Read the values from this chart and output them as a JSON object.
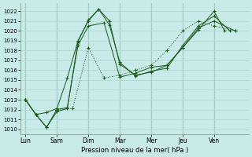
{
  "xlabel": "Pression niveau de la mer( hPa )",
  "ylim": [
    1009.5,
    1022.8
  ],
  "day_labels": [
    "Lun",
    "Sam",
    "Dim",
    "Mar",
    "Mer",
    "Jeu",
    "Ven"
  ],
  "background_color": "#c8eae8",
  "plot_bg_color": "#c8eae8",
  "grid_color": "#b0d4d0",
  "line_color": "#1a5c1a",
  "lines": [
    {
      "x": [
        0.0,
        0.33,
        0.67,
        1.0,
        1.33,
        1.67,
        2.0,
        2.33,
        2.67,
        3.0,
        3.5,
        4.0,
        4.5,
        5.0,
        5.5,
        6.0,
        6.33
      ],
      "y": [
        1013.0,
        1011.5,
        1011.7,
        1012.1,
        1015.2,
        1019.0,
        1021.0,
        1022.2,
        1021.0,
        1016.6,
        1015.5,
        1015.8,
        1016.5,
        1018.3,
        1020.1,
        1022.0,
        1020.0
      ],
      "style": "-"
    },
    {
      "x": [
        0.0,
        0.33,
        0.67,
        1.0,
        1.33,
        1.67,
        2.0,
        2.33,
        2.67,
        3.0,
        3.5,
        4.0,
        4.5,
        5.0,
        5.5,
        6.0,
        6.5
      ],
      "y": [
        1013.0,
        1011.5,
        1010.2,
        1011.8,
        1012.1,
        1018.9,
        1021.1,
        1022.2,
        1020.6,
        1016.8,
        1015.4,
        1015.9,
        1016.2,
        1018.5,
        1020.5,
        1021.5,
        1020.0
      ],
      "style": "-"
    },
    {
      "x": [
        0.0,
        0.33,
        0.67,
        1.0,
        1.33,
        1.67,
        2.0,
        2.5,
        3.0,
        3.5,
        4.0,
        4.5,
        5.0,
        5.5,
        6.0,
        6.67
      ],
      "y": [
        1013.0,
        1011.5,
        1010.2,
        1012.0,
        1012.2,
        1018.5,
        1020.5,
        1020.8,
        1015.3,
        1015.7,
        1016.3,
        1016.5,
        1018.3,
        1020.3,
        1021.0,
        1020.0
      ],
      "style": "-"
    },
    {
      "x": [
        0.0,
        0.33,
        0.67,
        1.0,
        1.5,
        2.0,
        2.5,
        3.0,
        3.5,
        4.0,
        4.5,
        5.0,
        5.5,
        6.0,
        6.67
      ],
      "y": [
        1013.0,
        1011.5,
        1010.2,
        1012.0,
        1012.1,
        1018.3,
        1015.2,
        1015.5,
        1016.0,
        1016.5,
        1018.0,
        1020.0,
        1021.0,
        1020.5,
        1020.0
      ],
      "style": ":"
    }
  ]
}
